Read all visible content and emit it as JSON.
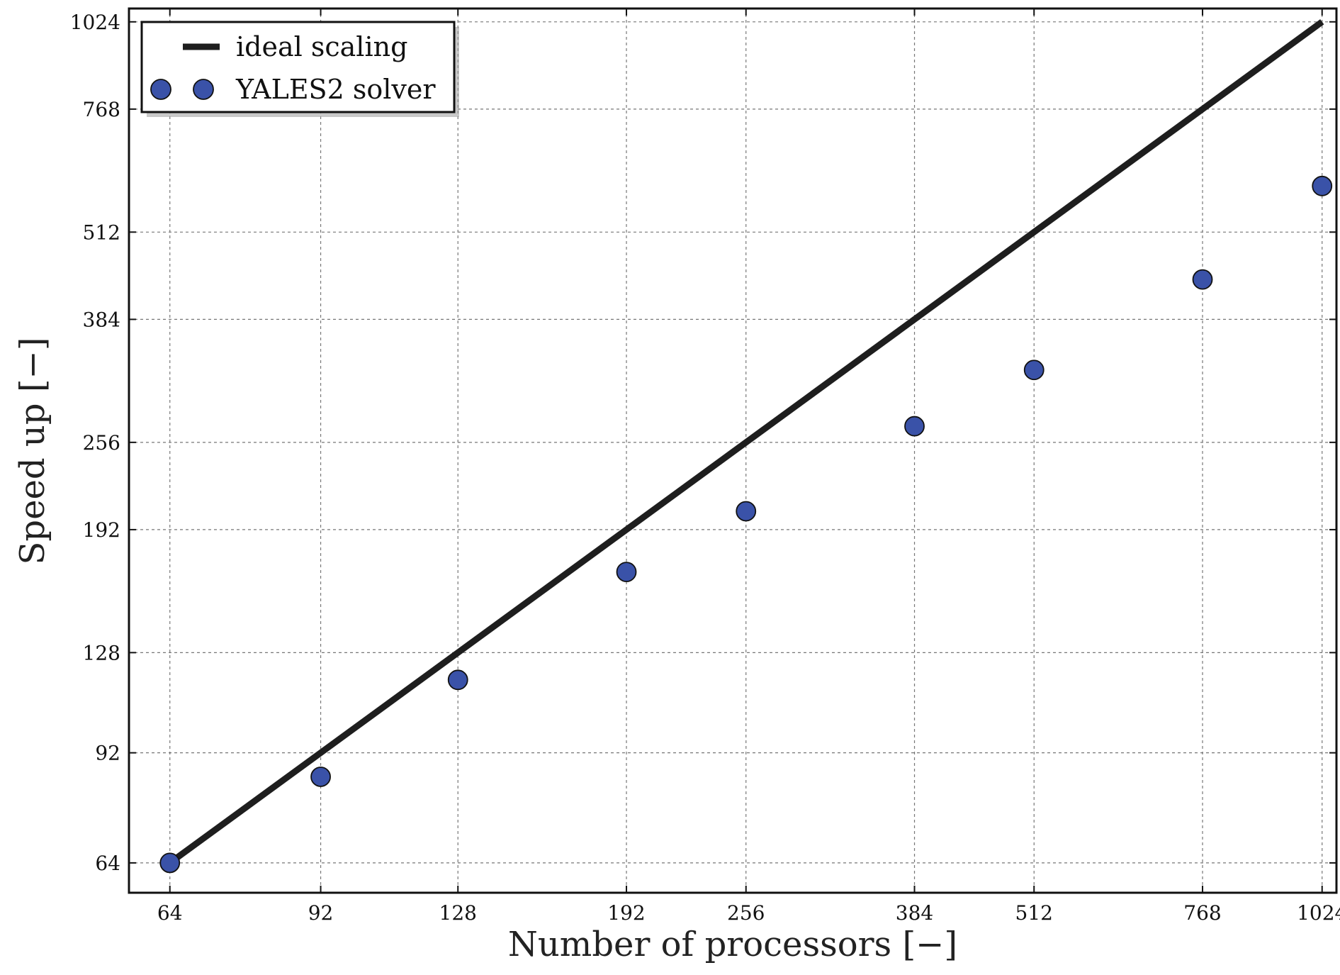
{
  "chart_data": {
    "type": "scatter",
    "xscale": "log2",
    "yscale": "log2",
    "xlabel": "Number of processors [−]",
    "ylabel": "Speed up [−]",
    "xlim": [
      58,
      1060
    ],
    "ylim": [
      58,
      1070
    ],
    "xticks": [
      64,
      92,
      128,
      192,
      256,
      384,
      512,
      768,
      1024
    ],
    "xtick_labels": [
      "64",
      "92",
      "128",
      "192",
      "256",
      "384",
      "512",
      "768",
      "1024"
    ],
    "yticks": [
      64,
      92,
      128,
      192,
      256,
      384,
      512,
      768,
      1024
    ],
    "ytick_labels": [
      "64",
      "92",
      "128",
      "192",
      "256",
      "384",
      "512",
      "768",
      "1024"
    ],
    "grid": true,
    "legend_position": "top-left",
    "series": [
      {
        "name": "ideal scaling",
        "kind": "line",
        "color": "#1e1e1e",
        "x": [
          64,
          1024
        ],
        "y": [
          64,
          1024
        ]
      },
      {
        "name": "YALES2 solver",
        "kind": "scatter",
        "color": "#3a52a8",
        "x": [
          64,
          92,
          128,
          192,
          256,
          384,
          512,
          768,
          1024
        ],
        "y": [
          64,
          85,
          117,
          167,
          204,
          270,
          325,
          438,
          596
        ]
      }
    ]
  }
}
